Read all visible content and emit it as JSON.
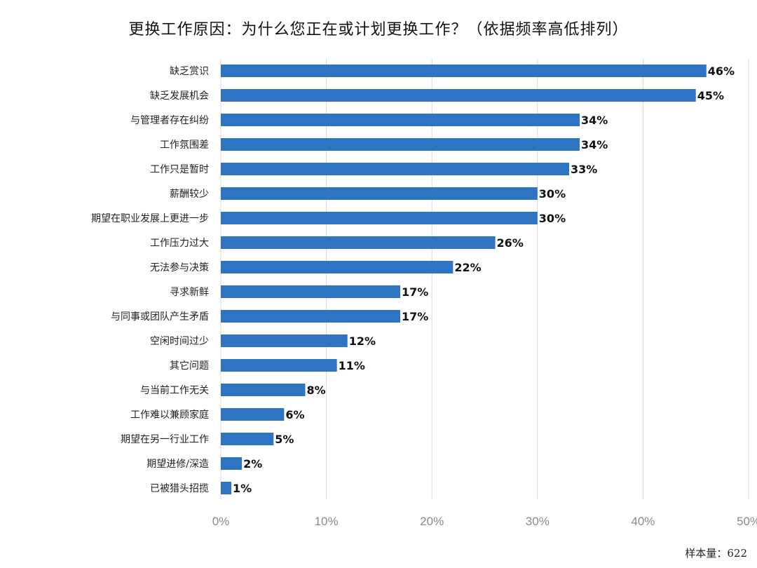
{
  "title": "更换工作原因：为什么您正在或计划更换工作？（依据频率高低排列）",
  "sample_note": "样本量：622",
  "colors": {
    "bar": "#2e74c3",
    "grid": "#d9d9d9"
  },
  "chart_data": {
    "type": "bar",
    "orientation": "horizontal",
    "title": "更换工作原因：为什么您正在或计划更换工作？（依据频率高低排列）",
    "categories": [
      "缺乏赏识",
      "缺乏发展机会",
      "与管理者存在纠纷",
      "工作氛围差",
      "工作只是暂时",
      "薪酬较少",
      "期望在职业发展上更进一步",
      "工作压力过大",
      "无法参与决策",
      "寻求新鲜",
      "与同事或团队产生矛盾",
      "空闲时间过少",
      "其它问题",
      "与当前工作无关",
      "工作难以兼顾家庭",
      "期望在另一行业工作",
      "期望进修/深造",
      "已被猎头招揽"
    ],
    "values": [
      46,
      45,
      34,
      34,
      33,
      30,
      30,
      26,
      22,
      17,
      17,
      12,
      11,
      8,
      6,
      5,
      2,
      1
    ],
    "value_labels": [
      "46%",
      "45%",
      "34%",
      "34%",
      "33%",
      "30%",
      "30%",
      "26%",
      "22%",
      "17%",
      "17%",
      "12%",
      "11%",
      "8%",
      "6%",
      "5%",
      "2%",
      "1%"
    ],
    "xlim": [
      0,
      50
    ],
    "xticks": [
      0,
      10,
      20,
      30,
      40,
      50
    ],
    "xtick_labels": [
      "0%",
      "10%",
      "20%",
      "30%",
      "40%",
      "50%"
    ],
    "grid": "vertical"
  }
}
